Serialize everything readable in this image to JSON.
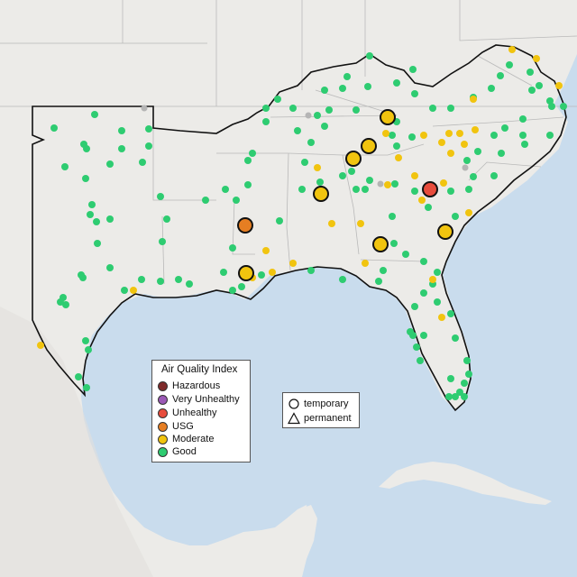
{
  "legend": {
    "title": "Air Quality Index",
    "items": [
      {
        "label": "Hazardous",
        "color": "#7e2a2a"
      },
      {
        "label": "Very Unhealthy",
        "color": "#9b59b6"
      },
      {
        "label": "Unhealthy",
        "color": "#e74c3c"
      },
      {
        "label": "USG",
        "color": "#e67e22"
      },
      {
        "label": "Moderate",
        "color": "#f1c40f"
      },
      {
        "label": "Good",
        "color": "#2ecc71"
      }
    ]
  },
  "shape_legend": {
    "temporary": "temporary",
    "permanent": "permanent"
  },
  "colors": {
    "water": "#c9dced",
    "land": "#ecebe8",
    "land_light": "#f2f1ee",
    "boundary": "#111111",
    "state_line": "#b9b9b9"
  }
}
